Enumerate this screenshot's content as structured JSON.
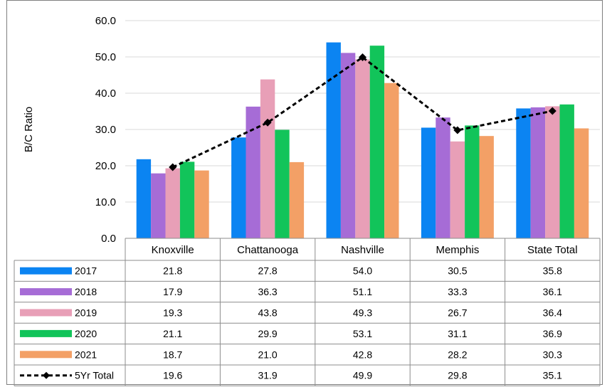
{
  "chart_data": {
    "type": "bar",
    "ylabel": "B/C Ratio",
    "ylim": [
      0,
      60
    ],
    "yticks": [
      "0.0",
      "10.0",
      "20.0",
      "30.0",
      "40.0",
      "50.0",
      "60.0"
    ],
    "grid": true,
    "categories": [
      "Knoxville",
      "Chattanooga",
      "Nashville",
      "Memphis",
      "State Total"
    ],
    "series": [
      {
        "name": "2017",
        "color": "#0b84f2",
        "values": [
          21.8,
          27.8,
          54.0,
          30.5,
          35.8
        ],
        "labels": [
          "21.8",
          "27.8",
          "54.0",
          "30.5",
          "35.8"
        ]
      },
      {
        "name": "2018",
        "color": "#a66cd6",
        "values": [
          17.9,
          36.3,
          51.1,
          33.3,
          36.1
        ],
        "labels": [
          "17.9",
          "36.3",
          "51.1",
          "33.3",
          "36.1"
        ]
      },
      {
        "name": "2019",
        "color": "#e89fb7",
        "values": [
          19.3,
          43.8,
          49.3,
          26.7,
          36.4
        ],
        "labels": [
          "19.3",
          "43.8",
          "49.3",
          "26.7",
          "36.4"
        ]
      },
      {
        "name": "2020",
        "color": "#12c45a",
        "values": [
          21.1,
          29.9,
          53.1,
          31.1,
          36.9
        ],
        "labels": [
          "21.1",
          "29.9",
          "53.1",
          "31.1",
          "36.9"
        ]
      },
      {
        "name": "2021",
        "color": "#f3a066",
        "values": [
          18.7,
          21.0,
          42.8,
          28.2,
          30.3
        ],
        "labels": [
          "18.7",
          "21.0",
          "42.8",
          "28.2",
          "30.3"
        ]
      }
    ],
    "line": {
      "name": "5Yr Total",
      "color": "#000000",
      "style": "dashed-diamond",
      "values": [
        19.6,
        31.9,
        49.9,
        29.8,
        35.1
      ],
      "labels": [
        "19.6",
        "31.9",
        "49.9",
        "29.8",
        "35.1"
      ]
    },
    "data_table": true
  }
}
